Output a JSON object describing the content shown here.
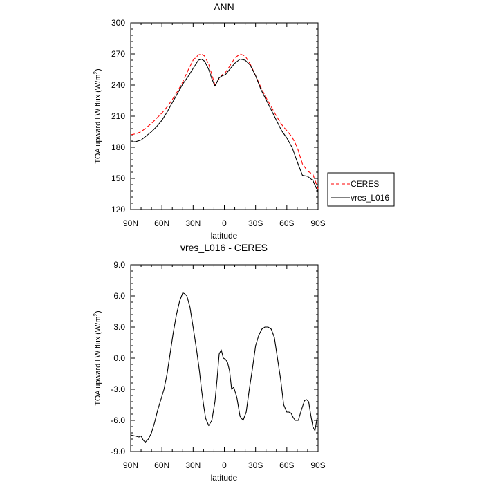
{
  "chart_data": [
    {
      "type": "line",
      "title": "ANN",
      "xlabel": "latitude",
      "ylabel_main": "TOA upward LW flux (W/m",
      "ylabel_sup": "2",
      "ylabel_close": ")",
      "xlim": [
        90,
        -90
      ],
      "ylim": [
        120,
        300
      ],
      "xticks": [
        90,
        60,
        30,
        0,
        -30,
        -60,
        -90
      ],
      "xtick_labels": [
        "90N",
        "60N",
        "30N",
        "0",
        "30S",
        "60S",
        "90S"
      ],
      "yticks": [
        120,
        150,
        180,
        210,
        240,
        270,
        300
      ],
      "ytick_labels": [
        "120",
        "150",
        "180",
        "210",
        "240",
        "270",
        "300"
      ],
      "legend": {
        "placement": "right",
        "entries": [
          "CERES",
          "vres_L016"
        ]
      },
      "series": [
        {
          "name": "CERES",
          "color": "#ff0000",
          "dash": true,
          "x": [
            90,
            85,
            80,
            75,
            70,
            65,
            60,
            55,
            50,
            45,
            40,
            35,
            30,
            25,
            22,
            19,
            15,
            12,
            9,
            5,
            2,
            -1,
            -5,
            -10,
            -15,
            -20,
            -25,
            -30,
            -35,
            -40,
            -45,
            -50,
            -55,
            -60,
            -65,
            -70,
            -75,
            -80,
            -85,
            -90
          ],
          "y": [
            192,
            193,
            195,
            199,
            203,
            208,
            213,
            219,
            226,
            234,
            243,
            254,
            264,
            269,
            270,
            268,
            260,
            250,
            240,
            246,
            250,
            252,
            258,
            266,
            270,
            268,
            260,
            249,
            238,
            228,
            219,
            210,
            202,
            196,
            190,
            180,
            164,
            157,
            154,
            140
          ]
        },
        {
          "name": "vres_L016",
          "color": "#000000",
          "dash": false,
          "x": [
            90,
            85,
            80,
            75,
            70,
            65,
            60,
            55,
            50,
            45,
            40,
            35,
            30,
            25,
            22,
            19,
            15,
            12,
            9,
            5,
            2,
            -1,
            -5,
            -10,
            -15,
            -20,
            -25,
            -30,
            -35,
            -40,
            -45,
            -50,
            -55,
            -60,
            -65,
            -70,
            -75,
            -80,
            -85,
            -90
          ],
          "y": [
            185,
            185.5,
            187,
            191,
            195,
            200,
            206,
            214,
            223,
            232,
            241,
            248,
            256,
            264,
            265,
            263,
            255,
            246,
            239,
            247,
            249,
            250,
            255,
            261,
            265,
            264,
            259,
            249,
            236,
            226,
            216,
            206,
            196,
            189,
            180,
            166,
            153,
            152,
            148,
            137
          ]
        }
      ]
    },
    {
      "type": "line",
      "title": "vres_L016 - CERES",
      "xlabel": "latitude",
      "ylabel_main": "TOA upward LW flux (W/m",
      "ylabel_sup": "2",
      "ylabel_close": ")",
      "xlim": [
        90,
        -90
      ],
      "ylim": [
        -9,
        9
      ],
      "xticks": [
        90,
        60,
        30,
        0,
        -30,
        -60,
        -90
      ],
      "xtick_labels": [
        "90N",
        "60N",
        "30N",
        "0",
        "30S",
        "60S",
        "90S"
      ],
      "yticks": [
        -9,
        -6,
        -3,
        0,
        3,
        6,
        9
      ],
      "ytick_labels": [
        "-9.0",
        "-6.0",
        "-3.0",
        "0.0",
        "3.0",
        "6.0",
        "9.0"
      ],
      "series": [
        {
          "color": "#000000",
          "dash": false,
          "x": [
            90,
            86,
            82,
            80,
            78,
            76,
            73,
            70,
            67,
            64,
            61,
            58,
            55,
            52,
            49,
            46,
            43,
            40,
            38,
            36,
            33,
            30,
            27,
            24,
            22,
            20,
            18,
            15,
            12,
            9,
            7,
            5,
            3,
            1,
            -1,
            -3,
            -5,
            -7,
            -9,
            -12,
            -15,
            -18,
            -21,
            -24,
            -27,
            -30,
            -33,
            -36,
            -39,
            -42,
            -45,
            -48,
            -51,
            -54,
            -57,
            -60,
            -62,
            -64,
            -66,
            -68,
            -71,
            -74,
            -77,
            -79,
            -81,
            -83,
            -85,
            -87,
            -89,
            -90
          ],
          "y": [
            -7.4,
            -7.5,
            -7.6,
            -7.5,
            -7.9,
            -8.1,
            -7.8,
            -7.2,
            -6.2,
            -5,
            -4,
            -3,
            -1.5,
            0.5,
            2.5,
            4.2,
            5.5,
            6.3,
            6.2,
            6.0,
            4.9,
            3.0,
            1.0,
            -1.2,
            -3.0,
            -4.5,
            -5.8,
            -6.5,
            -6.0,
            -4.2,
            -2.0,
            0.4,
            0.8,
            0.0,
            -0.1,
            -0.4,
            -1.2,
            -3.0,
            -2.8,
            -3.8,
            -5.6,
            -6.0,
            -5.2,
            -3.0,
            -1.0,
            1.2,
            2.2,
            2.8,
            3.0,
            3.0,
            2.8,
            2.0,
            0.0,
            -2.0,
            -4.5,
            -5.2,
            -5.2,
            -5.3,
            -5.7,
            -6.0,
            -6.0,
            -5.0,
            -4.1,
            -4.0,
            -4.2,
            -5.5,
            -6.6,
            -7.0,
            -5.8,
            -5.8
          ]
        }
      ]
    }
  ]
}
